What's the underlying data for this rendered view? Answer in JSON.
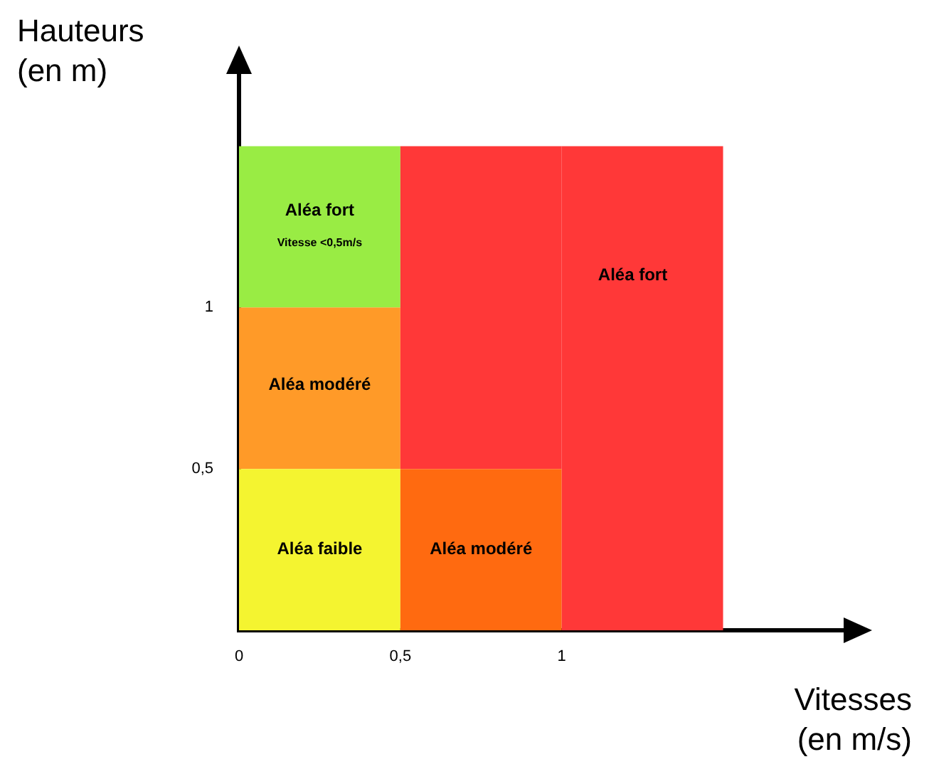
{
  "chart_data": {
    "type": "bar",
    "stacked": true,
    "xlabel": "Vitesses\n(en m/s)",
    "ylabel": "Hauteurs\n(en m)",
    "x": [
      0.25,
      0.75,
      1.25
    ],
    "series": [
      {
        "colors": [
          "#f4f430",
          "#ff6a10",
          "#ff3838"
        ],
        "values": [
          0.5,
          0.5,
          1.5
        ]
      },
      {
        "colors": [
          "#ff9a28",
          "#ff3838",
          null
        ],
        "values": [
          0.5,
          1.0,
          null
        ]
      },
      {
        "colors": [
          "#99ec44",
          null,
          null
        ],
        "values": [
          0.5,
          null,
          null
        ]
      }
    ],
    "xlim": [
      0,
      1.9
    ],
    "ylim": [
      0,
      1.75
    ],
    "xticks": [
      {
        "value": 0,
        "label": "0"
      },
      {
        "value": 0.5,
        "label": "0,5"
      },
      {
        "value": 1,
        "label": "1"
      }
    ],
    "yticks": [
      {
        "value": 0,
        "label": null
      },
      {
        "value": 0.5,
        "label": "0,5"
      },
      {
        "value": 1,
        "label": "1"
      }
    ],
    "annotations": [
      "Aléa faible",
      "Aléa modéré",
      "Aléa modéré",
      "Aléa fort",
      "Vitesse <0,5m/s",
      "Aléa fort"
    ],
    "grid": false,
    "legend": false
  }
}
